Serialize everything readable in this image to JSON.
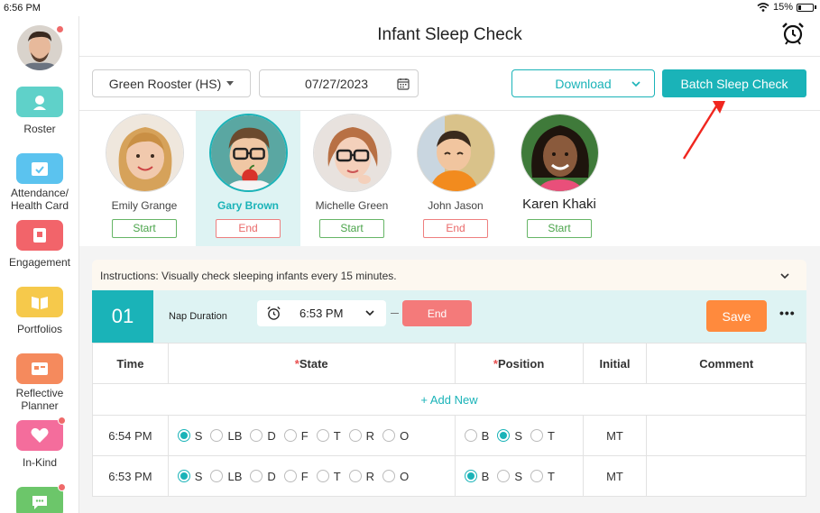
{
  "status_bar": {
    "time": "6:56 PM",
    "battery": "15%"
  },
  "sidebar": {
    "items": [
      {
        "label": "Roster",
        "icon": "roster-icon",
        "color": "#5fd1c9"
      },
      {
        "label": "Attendance/\nHealth Card",
        "icon": "attendance-icon",
        "color": "#5bc3ef"
      },
      {
        "label": "Engagement",
        "icon": "engagement-icon",
        "color": "#f2646a"
      },
      {
        "label": "Portfolios",
        "icon": "portfolio-icon",
        "color": "#f6c94b"
      },
      {
        "label": "Reflective\nPlanner",
        "icon": "planner-icon",
        "color": "#f58a5d"
      },
      {
        "label": "In-Kind",
        "icon": "heart-icon",
        "color": "#f46d9c"
      },
      {
        "label": "",
        "icon": "chat-icon",
        "color": "#6cc66a"
      }
    ]
  },
  "header": {
    "title": "Infant Sleep Check"
  },
  "toolbar": {
    "classroom": "Green Rooster (HS)",
    "date": "07/27/2023",
    "download_label": "Download",
    "batch_label": "Batch Sleep Check"
  },
  "children": [
    {
      "name": "Emily Grange",
      "action": "Start",
      "selected": false
    },
    {
      "name": "Gary Brown",
      "action": "End",
      "selected": true
    },
    {
      "name": "Michelle Green",
      "action": "Start",
      "selected": false
    },
    {
      "name": "John Jason",
      "action": "End",
      "selected": false
    },
    {
      "name": "Karen Khaki",
      "action": "Start",
      "selected": false
    }
  ],
  "instructions": "Instructions: Visually check sleeping infants every 15 minutes.",
  "nap": {
    "number": "01",
    "label": "Nap Duration",
    "start_time": "6:53 PM",
    "end_label": "End",
    "save_label": "Save",
    "more": "•••"
  },
  "table": {
    "headers": {
      "time": "Time",
      "state": "State",
      "position": "Position",
      "initial": "Initial",
      "comment": "Comment",
      "required_mark": "*"
    },
    "add_new": "+ Add New",
    "state_options": [
      "S",
      "LB",
      "D",
      "F",
      "T",
      "R",
      "O"
    ],
    "position_options": [
      "B",
      "S",
      "T"
    ],
    "rows": [
      {
        "time": "6:54 PM",
        "state": "S",
        "position": "S",
        "initial": "MT",
        "comment": ""
      },
      {
        "time": "6:53 PM",
        "state": "S",
        "position": "B",
        "initial": "MT",
        "comment": ""
      }
    ]
  }
}
